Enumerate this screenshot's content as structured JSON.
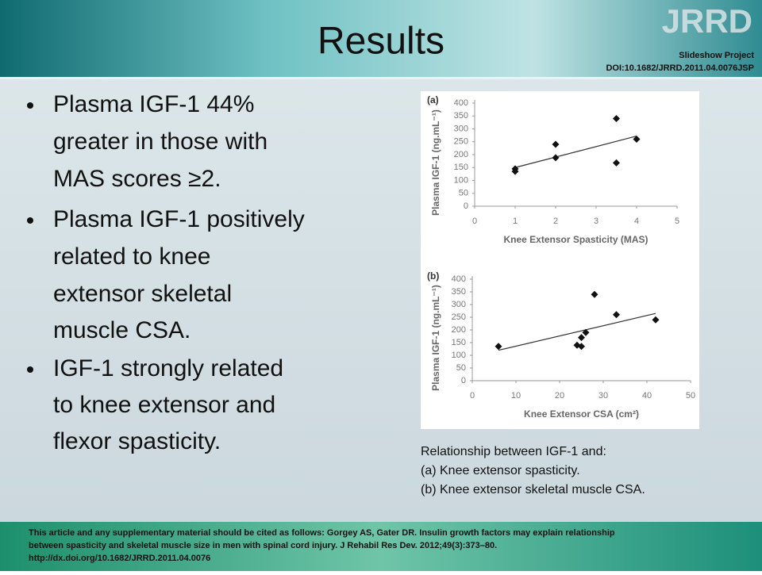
{
  "header": {
    "title": "Results",
    "logo": "JRRD",
    "project": "Slideshow Project",
    "doi": "DOI:10.1682/JRRD.2011.04.0076JSP"
  },
  "bullets": [
    {
      "lines": [
        "Plasma IGF-1 44%",
        "greater in those with",
        "MAS scores ≥2."
      ]
    },
    {
      "lines": [
        "Plasma IGF-1 positively",
        "related to knee",
        "extensor skeletal",
        "muscle CSA."
      ]
    },
    {
      "lines": [
        "IGF-1 strongly related",
        "to knee extensor and",
        "flexor spasticity."
      ]
    }
  ],
  "caption": [
    "Relationship between IGF-1 and:",
    "(a)  Knee extensor spasticity.",
    "(b)  Knee extensor skeletal muscle CSA."
  ],
  "footer": [
    "This article and any supplementary material should be cited as follows: Gorgey AS, Gater DR. Insulin growth factors may explain relationship",
    "between spasticity and skeletal muscle size in men with spinal cord injury. J Rehabil Res Dev. 2012;49(3):373–80.",
    "http://dx.doi.org/10.1682/JRRD.2011.04.0076"
  ],
  "chart_data": [
    {
      "type": "scatter",
      "panel": "(a)",
      "xlabel": "Knee Extensor Spasticity (MAS)",
      "ylabel": "Plasma IGF-1 (ng.mL⁻¹)",
      "x": [
        1,
        1,
        2,
        2,
        3.5,
        3.5,
        4
      ],
      "values": [
        135,
        145,
        240,
        188,
        340,
        168,
        260
      ],
      "color": "#111111",
      "trendline": {
        "x": [
          1,
          4
        ],
        "y": [
          150,
          272
        ]
      },
      "xlim": [
        0,
        5
      ],
      "xticks": [
        0,
        1,
        2,
        3,
        4,
        5
      ],
      "ylim": [
        0,
        400
      ],
      "yticks": [
        0,
        50,
        100,
        150,
        200,
        250,
        300,
        350,
        400
      ],
      "grid": false
    },
    {
      "type": "scatter",
      "panel": "(b)",
      "xlabel": "Knee Extensor CSA (cm²)",
      "ylabel": "Plasma IGF-1 (ng.mL⁻¹)",
      "x": [
        6,
        24,
        25,
        25,
        26,
        28,
        33,
        42
      ],
      "values": [
        135,
        140,
        170,
        135,
        190,
        340,
        260,
        240
      ],
      "color": "#111111",
      "trendline": {
        "x": [
          6,
          42
        ],
        "y": [
          120,
          265
        ]
      },
      "xlim": [
        0,
        50
      ],
      "xticks": [
        0,
        10,
        20,
        30,
        40,
        50
      ],
      "ylim": [
        0,
        400
      ],
      "yticks": [
        0,
        50,
        100,
        150,
        200,
        250,
        300,
        350,
        400
      ],
      "grid": false
    }
  ]
}
